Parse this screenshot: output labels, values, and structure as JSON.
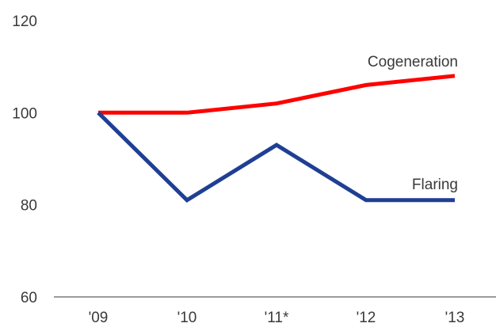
{
  "chart_data": {
    "type": "line",
    "title": "",
    "xlabel": "",
    "ylabel": "",
    "categories": [
      "'09",
      "'10",
      "'11*",
      "'12",
      "'13"
    ],
    "ylim": [
      60,
      120
    ],
    "yticks": [
      60,
      80,
      100,
      120
    ],
    "grid": false,
    "legend": "inline labels at line ends",
    "series": [
      {
        "name": "Cogeneration",
        "color": "#ff0000",
        "values": [
          100,
          100,
          102,
          106,
          108
        ]
      },
      {
        "name": "Flaring",
        "color": "#1f3f94",
        "values": [
          100,
          81,
          93,
          81,
          81
        ]
      }
    ]
  }
}
